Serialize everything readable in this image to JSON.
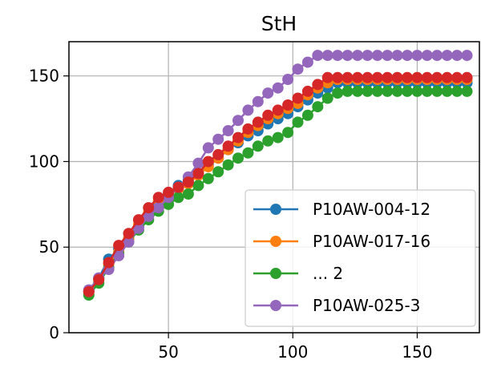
{
  "chart_data": {
    "type": "line",
    "title": "StH",
    "xlabel": "",
    "ylabel": "",
    "xlim": [
      10,
      175
    ],
    "ylim": [
      0,
      170
    ],
    "xticks": [
      50,
      100,
      150
    ],
    "yticks": [
      0,
      50,
      100,
      150
    ],
    "grid": true,
    "legend_position": "lower-right",
    "series": [
      {
        "name": "P10AW-004-12",
        "color": "#1f77b4",
        "x": [
          18,
          22,
          26,
          30,
          34,
          38,
          42,
          46,
          50,
          54,
          58,
          62,
          66,
          70,
          74,
          78,
          82,
          86,
          90,
          94,
          98,
          102,
          106,
          110,
          114,
          118,
          122,
          126,
          130,
          134,
          138,
          142,
          146,
          150,
          154,
          158,
          162,
          166,
          170
        ],
        "y": [
          24,
          32,
          43,
          49,
          55,
          62,
          69,
          75,
          81,
          86,
          89,
          93,
          98,
          102,
          107,
          111,
          115,
          118,
          122,
          125,
          128,
          132,
          136,
          140,
          143,
          146,
          146,
          146,
          146,
          146,
          146,
          146,
          146,
          146,
          146,
          146,
          146,
          146,
          146
        ]
      },
      {
        "name": "P10AW-017-16",
        "color": "#ff7f0e",
        "x": [
          18,
          22,
          26,
          30,
          34,
          38,
          42,
          46,
          50,
          54,
          58,
          62,
          66,
          70,
          74,
          78,
          82,
          86,
          90,
          94,
          98,
          102,
          106,
          110,
          114,
          118,
          122,
          126,
          130,
          134,
          138,
          142,
          146,
          150,
          154,
          158,
          162,
          166,
          170
        ],
        "y": [
          24,
          31,
          40,
          47,
          55,
          63,
          70,
          77,
          80,
          84,
          87,
          92,
          97,
          102,
          107,
          112,
          117,
          121,
          125,
          128,
          131,
          134,
          139,
          143,
          146,
          148,
          148,
          148,
          148,
          148,
          148,
          148,
          148,
          148,
          148,
          148,
          148,
          148,
          148
        ]
      },
      {
        "name": "... 2",
        "color": "#2ca02c",
        "x": [
          18,
          22,
          26,
          30,
          34,
          38,
          42,
          46,
          50,
          54,
          58,
          62,
          66,
          70,
          74,
          78,
          82,
          86,
          90,
          94,
          98,
          102,
          106,
          110,
          114,
          118,
          122,
          126,
          130,
          134,
          138,
          142,
          146,
          150,
          154,
          158,
          162,
          166,
          170
        ],
        "y": [
          22,
          29,
          38,
          46,
          53,
          60,
          66,
          71,
          75,
          79,
          81,
          86,
          90,
          94,
          98,
          102,
          105,
          109,
          112,
          114,
          117,
          123,
          127,
          132,
          137,
          140,
          141,
          141,
          141,
          141,
          141,
          141,
          141,
          141,
          141,
          141,
          141,
          141,
          141
        ]
      },
      {
        "name": "P10AW-025-3",
        "color": "#9467bd",
        "x": [
          18,
          22,
          26,
          30,
          34,
          38,
          42,
          46,
          50,
          54,
          58,
          62,
          66,
          70,
          74,
          78,
          82,
          86,
          90,
          94,
          98,
          102,
          106,
          110,
          114,
          118,
          122,
          126,
          130,
          134,
          138,
          142,
          146,
          150,
          154,
          158,
          162,
          166,
          170
        ],
        "y": [
          25,
          32,
          37,
          45,
          53,
          61,
          68,
          73,
          79,
          85,
          91,
          99,
          108,
          113,
          118,
          124,
          130,
          135,
          140,
          143,
          148,
          154,
          158,
          162,
          162,
          162,
          162,
          162,
          162,
          162,
          162,
          162,
          162,
          162,
          162,
          162,
          162,
          162,
          162
        ]
      },
      {
        "name": "",
        "color": "#d62728",
        "x": [
          18,
          22,
          26,
          30,
          34,
          38,
          42,
          46,
          50,
          54,
          58,
          62,
          66,
          70,
          74,
          78,
          82,
          86,
          90,
          94,
          98,
          102,
          106,
          110,
          114,
          118,
          122,
          126,
          130,
          134,
          138,
          142,
          146,
          150,
          154,
          158,
          162,
          166,
          170
        ],
        "y": [
          24,
          31,
          41,
          51,
          58,
          66,
          73,
          79,
          82,
          85,
          88,
          93,
          100,
          104,
          109,
          114,
          119,
          123,
          127,
          130,
          133,
          137,
          141,
          145,
          149,
          149,
          149,
          149,
          149,
          149,
          149,
          149,
          149,
          149,
          149,
          149,
          149,
          149,
          149
        ]
      }
    ],
    "legend_series": [
      0,
      1,
      2,
      3
    ]
  }
}
